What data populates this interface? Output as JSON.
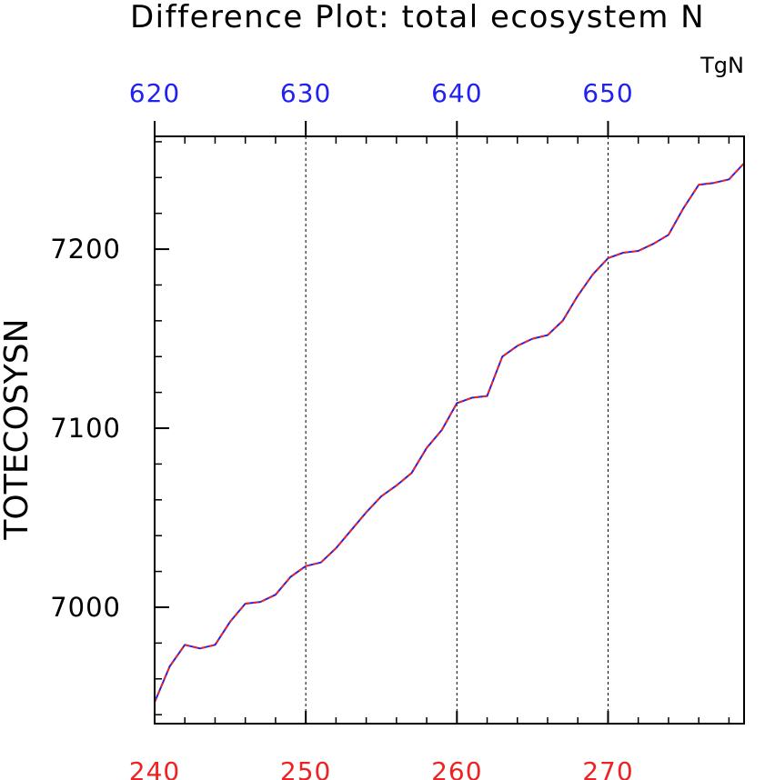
{
  "chart_data": {
    "type": "line",
    "title": "Difference Plot: total ecosystem N",
    "units": "TgN",
    "ylabel": "TOTECOSYSN",
    "bottom_axis": {
      "xlim": [
        240,
        279
      ],
      "tick_labels": [
        "240",
        "250",
        "260",
        "270"
      ],
      "color": "#ee2222"
    },
    "top_axis": {
      "xlim": [
        620,
        659
      ],
      "tick_labels": [
        "620",
        "630",
        "640",
        "650"
      ],
      "color": "#2222ee"
    },
    "ylim": [
      6935,
      7263
    ],
    "y_tick_labels": [
      "7000",
      "7100",
      "7200"
    ],
    "grid": "vertical dashed at major x ticks",
    "series": [
      {
        "color": "#ee2222",
        "dash": "dashed",
        "x": [
          240,
          241,
          242,
          243,
          244,
          245,
          246,
          247,
          248,
          249,
          250,
          251,
          252,
          253,
          254,
          255,
          256,
          257,
          258,
          259,
          260,
          261,
          262,
          263,
          264,
          265,
          266,
          267,
          268,
          269,
          270,
          271,
          272,
          273,
          274,
          275,
          276,
          277,
          278,
          279
        ],
        "y": [
          6947,
          6967,
          6979,
          6977,
          6979,
          6992,
          7002,
          7003,
          7007,
          7017,
          7023,
          7025,
          7033,
          7043,
          7053,
          7062,
          7068,
          7075,
          7089,
          7099,
          7114,
          7117,
          7118,
          7140,
          7146,
          7150,
          7152,
          7160,
          7174,
          7186,
          7195,
          7198,
          7199,
          7203,
          7208,
          7223,
          7236,
          7237,
          7239,
          7248
        ]
      },
      {
        "color": "#2222ee",
        "dash": "solid",
        "x": [
          620,
          621,
          622,
          623,
          624,
          625,
          626,
          627,
          628,
          629,
          630,
          631,
          632,
          633,
          634,
          635,
          636,
          637,
          638,
          639,
          640,
          641,
          642,
          643,
          644,
          645,
          646,
          647,
          648,
          649,
          650,
          651,
          652,
          653,
          654,
          655,
          656,
          657,
          658,
          659
        ],
        "y": [
          6947,
          6967,
          6979,
          6977,
          6979,
          6992,
          7002,
          7003,
          7007,
          7017,
          7023,
          7025,
          7033,
          7043,
          7053,
          7062,
          7068,
          7075,
          7089,
          7099,
          7114,
          7117,
          7118,
          7140,
          7146,
          7150,
          7152,
          7160,
          7174,
          7186,
          7195,
          7198,
          7199,
          7203,
          7208,
          7223,
          7236,
          7237,
          7239,
          7248
        ]
      }
    ]
  }
}
